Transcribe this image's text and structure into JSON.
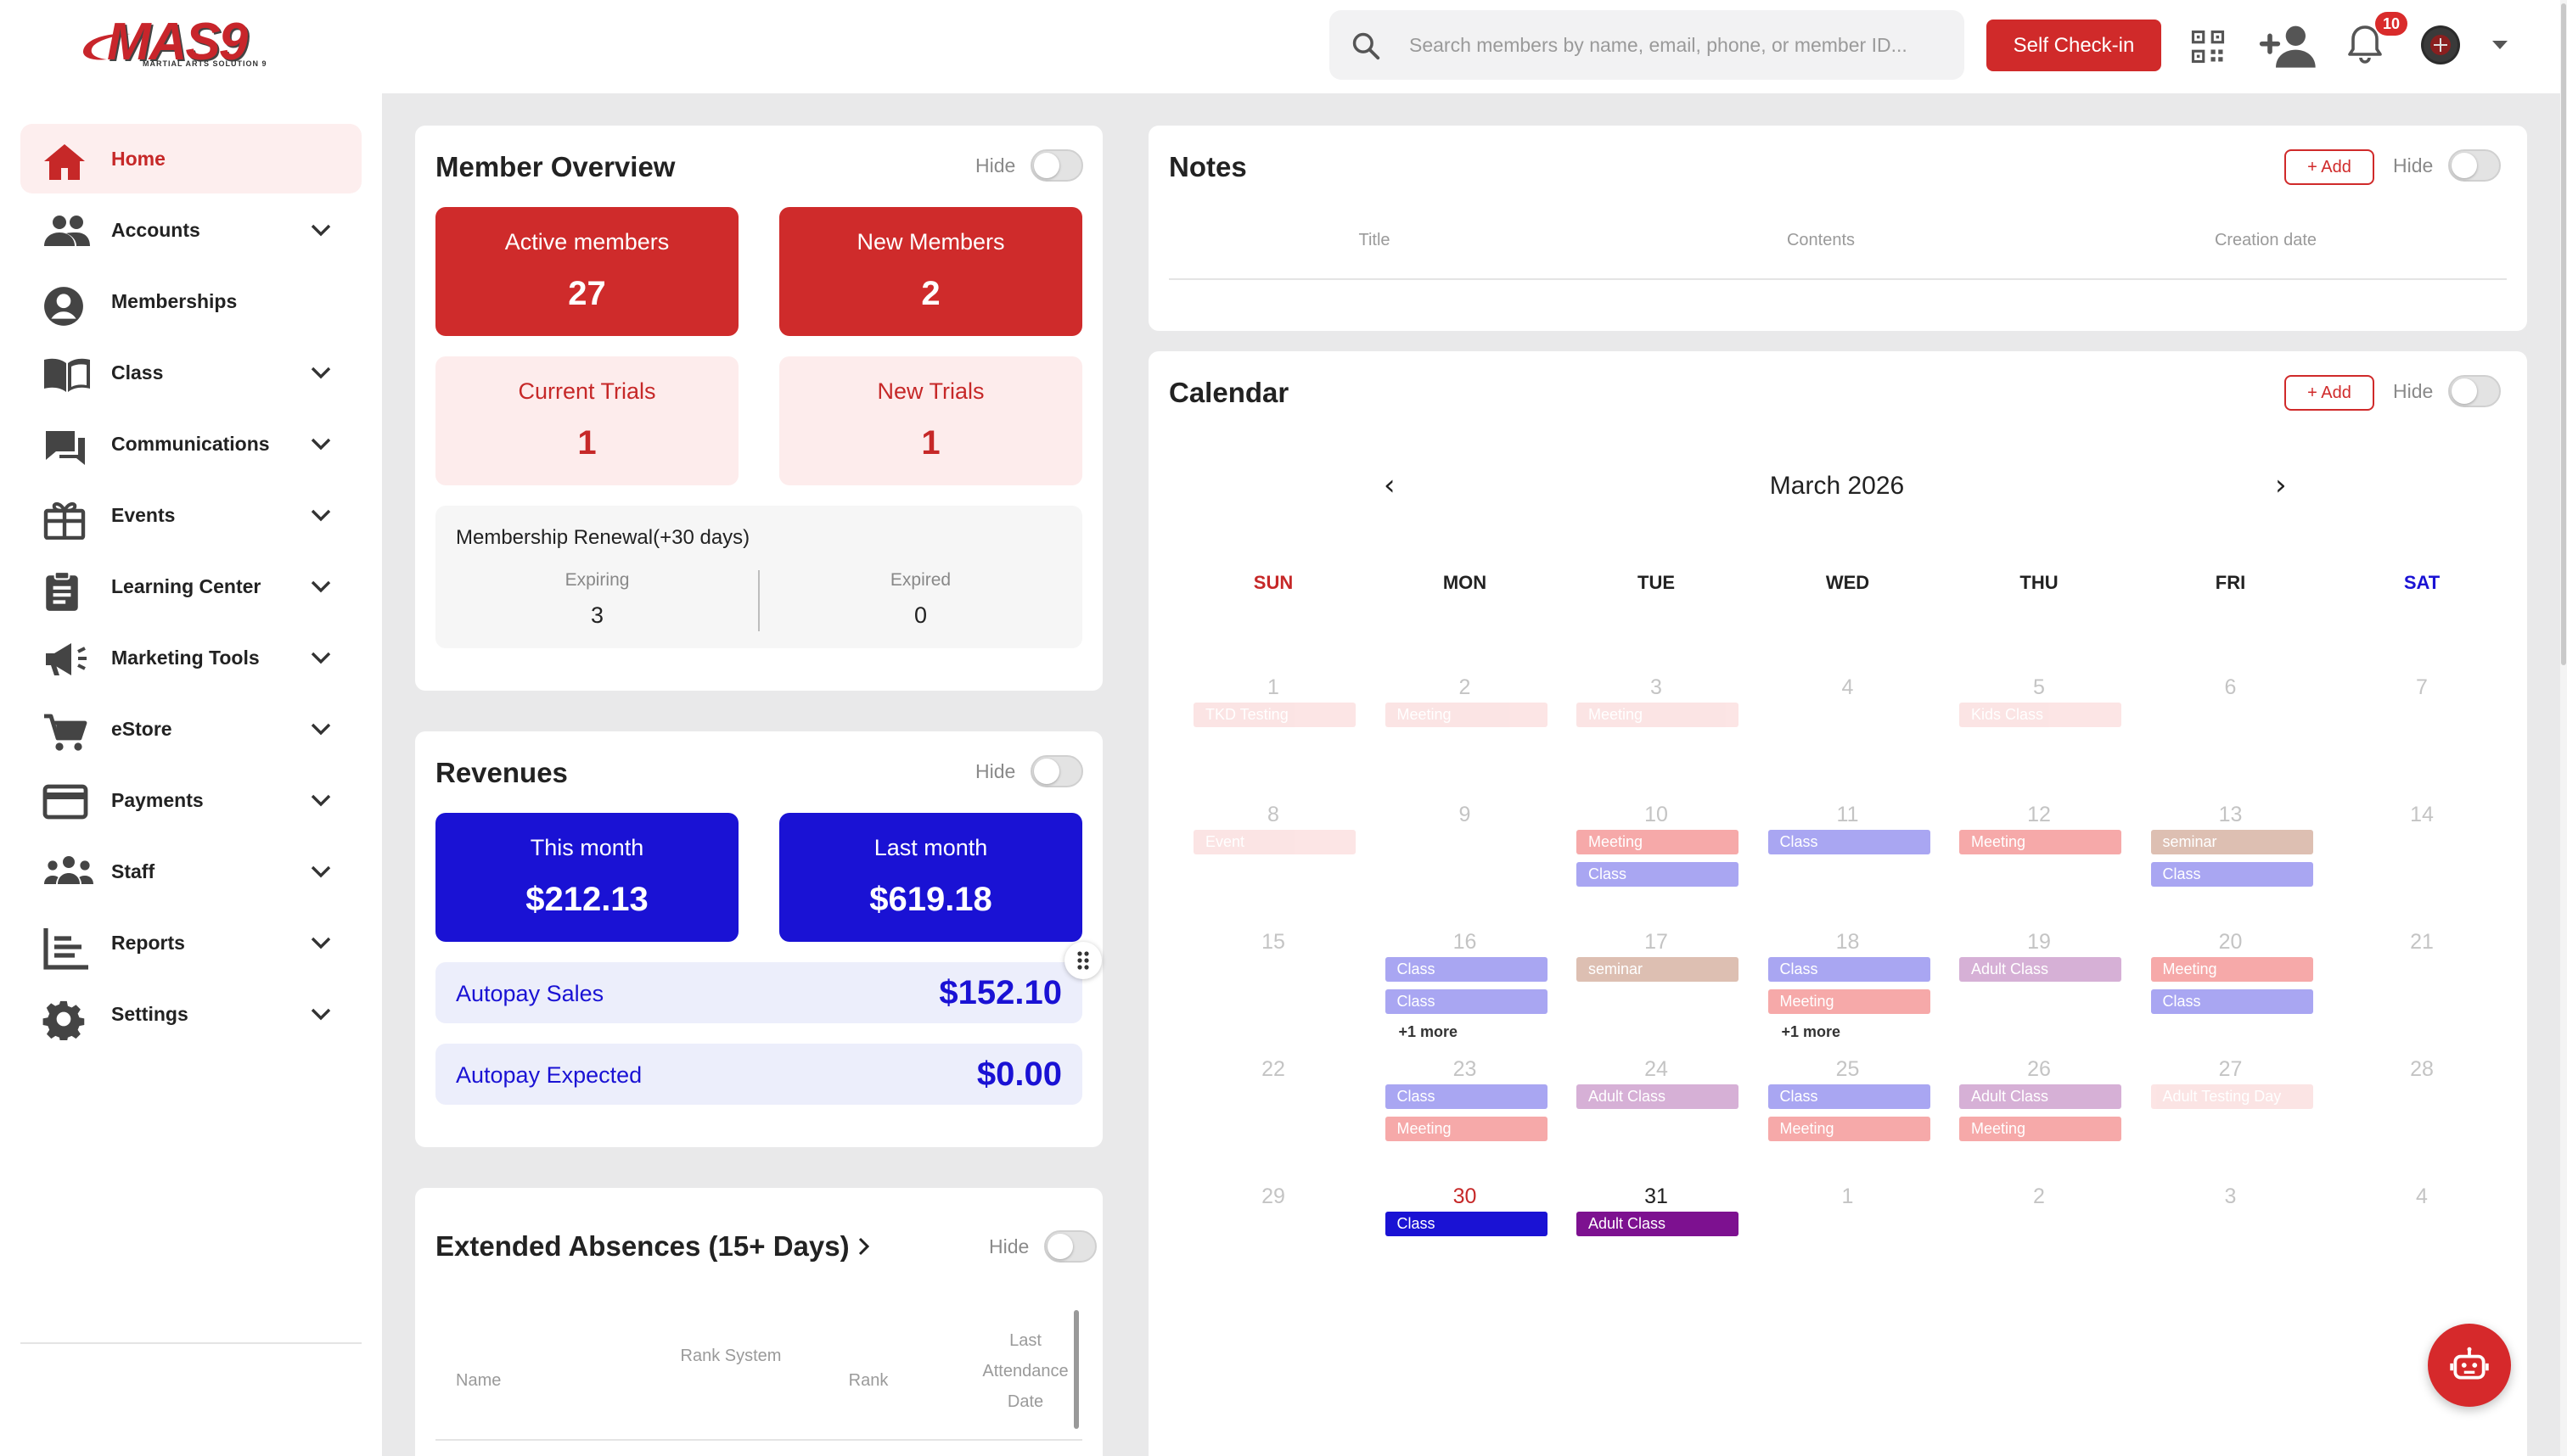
{
  "header": {
    "logo_text": "MAS9",
    "logo_subtitle": "MARTIAL ARTS SOLUTION 9",
    "search_placeholder": "Search members by name, email, phone, or member ID...",
    "self_checkin_label": "Self Check-in",
    "notification_count": "10"
  },
  "sidebar": {
    "items": [
      {
        "label": "Home",
        "icon": "home-icon",
        "active": true,
        "expandable": false
      },
      {
        "label": "Accounts",
        "icon": "users-icon",
        "active": false,
        "expandable": true
      },
      {
        "label": "Memberships",
        "icon": "account-circle-icon",
        "active": false,
        "expandable": false
      },
      {
        "label": "Class",
        "icon": "book-icon",
        "active": false,
        "expandable": true
      },
      {
        "label": "Communications",
        "icon": "chat-icon",
        "active": false,
        "expandable": true
      },
      {
        "label": "Events",
        "icon": "gift-icon",
        "active": false,
        "expandable": true
      },
      {
        "label": "Learning Center",
        "icon": "clipboard-icon",
        "active": false,
        "expandable": true
      },
      {
        "label": "Marketing Tools",
        "icon": "megaphone-icon",
        "active": false,
        "expandable": true
      },
      {
        "label": "eStore",
        "icon": "cart-icon",
        "active": false,
        "expandable": true
      },
      {
        "label": "Payments",
        "icon": "credit-card-icon",
        "active": false,
        "expandable": true
      },
      {
        "label": "Staff",
        "icon": "group-icon",
        "active": false,
        "expandable": true
      },
      {
        "label": "Reports",
        "icon": "list-icon",
        "active": false,
        "expandable": true
      },
      {
        "label": "Settings",
        "icon": "gear-icon",
        "active": false,
        "expandable": true
      }
    ]
  },
  "member_overview": {
    "title": "Member Overview",
    "hide_label": "Hide",
    "active_members": {
      "label": "Active members",
      "value": "27"
    },
    "new_members": {
      "label": "New Members",
      "value": "2"
    },
    "current_trials": {
      "label": "Current Trials",
      "value": "1"
    },
    "new_trials": {
      "label": "New Trials",
      "value": "1"
    },
    "renewal": {
      "title": "Membership Renewal(+30 days)",
      "expiring_label": "Expiring",
      "expiring_value": "3",
      "expired_label": "Expired",
      "expired_value": "0"
    }
  },
  "revenues": {
    "title": "Revenues",
    "hide_label": "Hide",
    "this_month": {
      "label": "This month",
      "value": "$212.13"
    },
    "last_month": {
      "label": "Last month",
      "value": "$619.18"
    },
    "autopay_sales": {
      "label": "Autopay Sales",
      "value": "$152.10"
    },
    "autopay_expected": {
      "label": "Autopay Expected",
      "value": "$0.00"
    }
  },
  "absences": {
    "title": "Extended Absences (15+ Days)",
    "hide_label": "Hide",
    "columns": {
      "name": "Name",
      "rank_system": "Rank System",
      "rank": "Rank",
      "last_attendance": "Last Attendance Date"
    }
  },
  "notes": {
    "title": "Notes",
    "add_label": "+ Add",
    "hide_label": "Hide",
    "columns": [
      "Title",
      "Contents",
      "Creation date"
    ]
  },
  "calendar": {
    "title": "Calendar",
    "add_label": "+ Add",
    "hide_label": "Hide",
    "month": "March 2026",
    "prev_label": "‹",
    "next_label": "›",
    "weekdays": [
      "SUN",
      "MON",
      "TUE",
      "WED",
      "THU",
      "FRI",
      "SAT"
    ],
    "weekday_colors": [
      "#c62828",
      "#222222",
      "#222222",
      "#222222",
      "#222222",
      "#222222",
      "#1a12d4"
    ],
    "event_colors": {
      "Class": "#a9a6f2",
      "Meeting": "#f6a9a9",
      "seminar": "#ddbfb2",
      "Adult Class": "#d6b0d6",
      "TKD Testing": "#f6a9a9",
      "faint": "#f5b4b4",
      "class_today": "#1a12d4",
      "adult_class_today": "#7d1190"
    },
    "weeks": [
      [
        {
          "day": "1",
          "current": false,
          "events": [
            {
              "title": "TKD Testing",
              "type": "faint"
            }
          ]
        },
        {
          "day": "2",
          "current": false,
          "events": [
            {
              "title": "Meeting",
              "type": "faint"
            }
          ]
        },
        {
          "day": "3",
          "current": false,
          "events": [
            {
              "title": "Meeting",
              "type": "faint"
            }
          ]
        },
        {
          "day": "4",
          "current": false,
          "events": []
        },
        {
          "day": "5",
          "current": false,
          "events": [
            {
              "title": "Kids Class",
              "type": "faint"
            }
          ]
        },
        {
          "day": "6",
          "current": false,
          "events": []
        },
        {
          "day": "7",
          "current": false,
          "events": []
        }
      ],
      [
        {
          "day": "8",
          "current": false,
          "events": [
            {
              "title": "Event",
              "type": "faint"
            }
          ]
        },
        {
          "day": "9",
          "current": false,
          "events": []
        },
        {
          "day": "10",
          "current": false,
          "events": [
            {
              "title": "Meeting",
              "type": "Meeting"
            },
            {
              "title": "Class",
              "type": "Class"
            }
          ]
        },
        {
          "day": "11",
          "current": false,
          "events": [
            {
              "title": "Class",
              "type": "Class"
            }
          ]
        },
        {
          "day": "12",
          "current": false,
          "events": [
            {
              "title": "Meeting",
              "type": "Meeting"
            }
          ]
        },
        {
          "day": "13",
          "current": false,
          "events": [
            {
              "title": "seminar",
              "type": "seminar"
            },
            {
              "title": "Class",
              "type": "Class"
            }
          ]
        },
        {
          "day": "14",
          "current": false,
          "events": []
        }
      ],
      [
        {
          "day": "15",
          "current": false,
          "events": []
        },
        {
          "day": "16",
          "current": false,
          "events": [
            {
              "title": "Class",
              "type": "Class"
            },
            {
              "title": "Class",
              "type": "Class"
            }
          ],
          "more": "+1 more"
        },
        {
          "day": "17",
          "current": false,
          "events": [
            {
              "title": "seminar",
              "type": "seminar"
            }
          ]
        },
        {
          "day": "18",
          "current": false,
          "events": [
            {
              "title": "Class",
              "type": "Class"
            },
            {
              "title": "Meeting",
              "type": "Meeting"
            }
          ],
          "more": "+1 more"
        },
        {
          "day": "19",
          "current": false,
          "events": [
            {
              "title": "Adult Class",
              "type": "Adult Class"
            }
          ]
        },
        {
          "day": "20",
          "current": false,
          "events": [
            {
              "title": "Meeting",
              "type": "Meeting"
            },
            {
              "title": "Class",
              "type": "Class"
            }
          ]
        },
        {
          "day": "21",
          "current": false,
          "events": []
        }
      ],
      [
        {
          "day": "22",
          "current": false,
          "events": []
        },
        {
          "day": "23",
          "current": false,
          "events": [
            {
              "title": "Class",
              "type": "Class"
            },
            {
              "title": "Meeting",
              "type": "Meeting"
            }
          ]
        },
        {
          "day": "24",
          "current": false,
          "events": [
            {
              "title": "Adult Class",
              "type": "Adult Class"
            }
          ]
        },
        {
          "day": "25",
          "current": false,
          "events": [
            {
              "title": "Class",
              "type": "Class"
            },
            {
              "title": "Meeting",
              "type": "Meeting"
            }
          ]
        },
        {
          "day": "26",
          "current": false,
          "events": [
            {
              "title": "Adult Class",
              "type": "Adult Class"
            },
            {
              "title": "Meeting",
              "type": "Meeting"
            }
          ]
        },
        {
          "day": "27",
          "current": false,
          "events": [
            {
              "title": "Adult Testing Day",
              "type": "faint"
            }
          ]
        },
        {
          "day": "28",
          "current": false,
          "events": []
        }
      ],
      [
        {
          "day": "29",
          "current": false,
          "events": []
        },
        {
          "day": "30",
          "current": true,
          "today": true,
          "events": [
            {
              "title": "Class",
              "type": "class_today"
            }
          ]
        },
        {
          "day": "31",
          "current": true,
          "events": [
            {
              "title": "Adult Class",
              "type": "adult_class_today"
            }
          ]
        },
        {
          "day": "1",
          "current": false,
          "events": []
        },
        {
          "day": "2",
          "current": false,
          "events": []
        },
        {
          "day": "3",
          "current": false,
          "events": []
        },
        {
          "day": "4",
          "current": false,
          "events": []
        }
      ]
    ]
  }
}
